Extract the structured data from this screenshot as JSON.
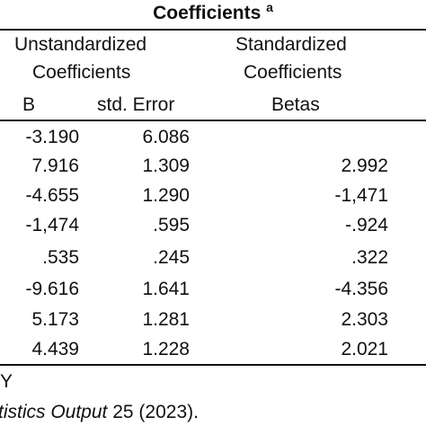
{
  "table": {
    "title": "Coefficients",
    "title_superscript": "a",
    "headers": {
      "unstandardized_line1": "Unstandardized",
      "unstandardized_line2": "Coefficients",
      "standardized_line1": "Standardized",
      "standardized_line2": "Coefficients",
      "col_b": "B",
      "col_std_error": "std. Error",
      "col_betas": "Betas"
    },
    "rows": [
      {
        "b": "-3.190",
        "std_error": "6.086",
        "betas": ""
      },
      {
        "b": "7.916",
        "std_error": "1.309",
        "betas": "2.992"
      },
      {
        "b": "-4.655",
        "std_error": "1.290",
        "betas": "-1,471"
      },
      {
        "b": "-1,474",
        "std_error": ".595",
        "betas": "-.924"
      },
      {
        "b": ".535",
        "std_error": ".245",
        "betas": ".322"
      },
      {
        "b": "-9.616",
        "std_error": "1.641",
        "betas": "-4.356"
      },
      {
        "b": "5.173",
        "std_error": "1.281",
        "betas": "2.303"
      },
      {
        "b": "4.439",
        "std_error": "1.228",
        "betas": "2.021"
      }
    ]
  },
  "footer": {
    "line1": "Y",
    "source_italic": "tistics Output",
    "source_rest": " 25 (2023)."
  }
}
